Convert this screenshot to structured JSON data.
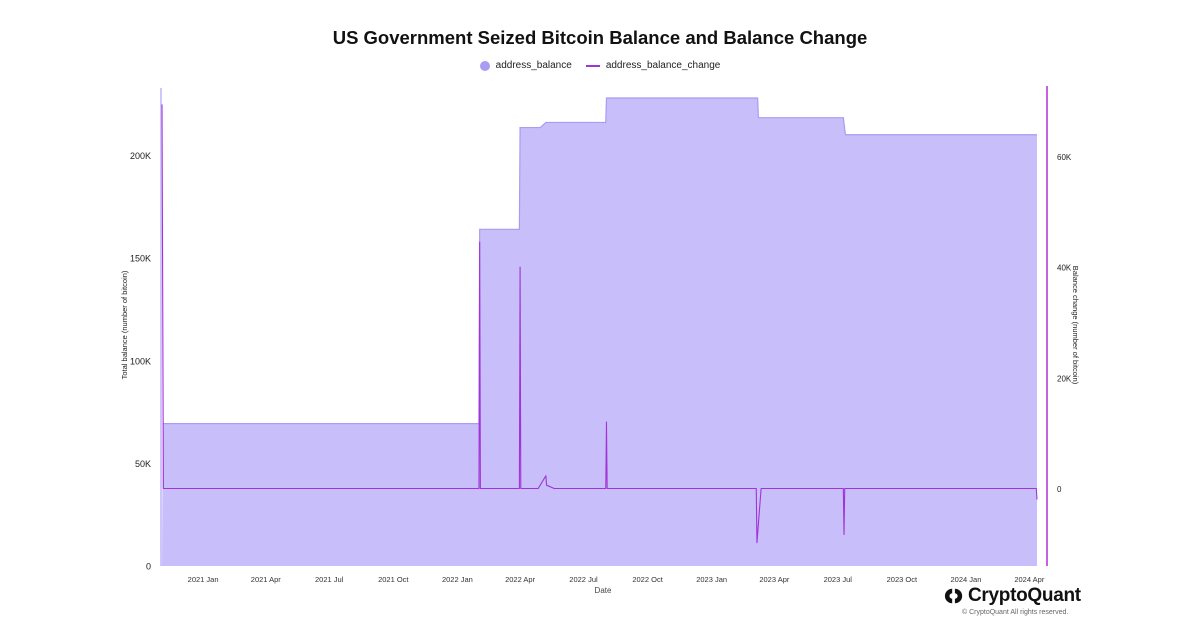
{
  "title": "US Government Seized Bitcoin Balance and Balance Change",
  "legend": {
    "balance_label": "address_balance",
    "change_label": "address_balance_change"
  },
  "colors": {
    "balance_fill": "#c8bffa",
    "balance_edge": "#a99bf0",
    "change_line": "#a233d6",
    "legend_dot": "#a99cf2",
    "axis_right": "#b53ad8",
    "axis_left": "#cfc6fb"
  },
  "watermark": "CryptoQuant",
  "brand": {
    "name": "CryptoQuant",
    "copyright": "© CryptoQuant All rights reserved."
  },
  "chart_data": {
    "type": "area",
    "xlabel": "Date",
    "ylabel_left": "Total balance (number of bitcoin)",
    "ylabel_right": "Balance change (number of bitcoin)",
    "ylim_left": [
      0,
      232000
    ],
    "ylim_right": [
      -14000,
      72000
    ],
    "x_range": [
      "2020-11-03",
      "2024-04-12"
    ],
    "x_ticks": [
      {
        "date": "2021-01-01",
        "label": "2021 Jan"
      },
      {
        "date": "2021-04-01",
        "label": "2021 Apr"
      },
      {
        "date": "2021-07-01",
        "label": "2021 Jul"
      },
      {
        "date": "2021-10-01",
        "label": "2021 Oct"
      },
      {
        "date": "2022-01-01",
        "label": "2022 Jan"
      },
      {
        "date": "2022-04-01",
        "label": "2022 Apr"
      },
      {
        "date": "2022-07-01",
        "label": "2022 Jul"
      },
      {
        "date": "2022-10-01",
        "label": "2022 Oct"
      },
      {
        "date": "2023-01-01",
        "label": "2023 Jan"
      },
      {
        "date": "2023-04-01",
        "label": "2023 Apr"
      },
      {
        "date": "2023-07-01",
        "label": "2023 Jul"
      },
      {
        "date": "2023-10-01",
        "label": "2023 Oct"
      },
      {
        "date": "2024-01-01",
        "label": "2024 Jan"
      },
      {
        "date": "2024-04-01",
        "label": "2024 Apr"
      }
    ],
    "y_ticks_left": [
      {
        "value": 0,
        "label": "0"
      },
      {
        "value": 50000,
        "label": "50K"
      },
      {
        "value": 100000,
        "label": "100K"
      },
      {
        "value": 150000,
        "label": "150K"
      },
      {
        "value": 200000,
        "label": "200K"
      }
    ],
    "y_ticks_right": [
      {
        "value": 0,
        "label": "0"
      },
      {
        "value": 20000,
        "label": "20K"
      },
      {
        "value": 40000,
        "label": "40K"
      },
      {
        "value": 60000,
        "label": "60K"
      }
    ],
    "series": [
      {
        "name": "address_balance",
        "points": [
          {
            "x": "2020-11-03",
            "y": 0
          },
          {
            "x": "2020-11-04",
            "y": 69400
          },
          {
            "x": "2022-02-01",
            "y": 69400
          },
          {
            "x": "2022-02-02",
            "y": 164100
          },
          {
            "x": "2022-03-31",
            "y": 164100
          },
          {
            "x": "2022-04-01",
            "y": 213700
          },
          {
            "x": "2022-04-30",
            "y": 213700
          },
          {
            "x": "2022-05-08",
            "y": 216200
          },
          {
            "x": "2022-08-02",
            "y": 216200
          },
          {
            "x": "2022-08-03",
            "y": 228100
          },
          {
            "x": "2023-03-08",
            "y": 228100
          },
          {
            "x": "2023-03-09",
            "y": 218500
          },
          {
            "x": "2023-07-09",
            "y": 218500
          },
          {
            "x": "2023-07-12",
            "y": 210200
          },
          {
            "x": "2024-04-12",
            "y": 210200
          }
        ]
      },
      {
        "name": "address_balance_change",
        "points": [
          {
            "x": "2020-11-03",
            "y": 69400
          },
          {
            "x": "2020-11-05",
            "y": 0
          },
          {
            "x": "2022-02-01",
            "y": 0
          },
          {
            "x": "2022-02-02",
            "y": 44500
          },
          {
            "x": "2022-02-03",
            "y": 0
          },
          {
            "x": "2022-03-31",
            "y": 0
          },
          {
            "x": "2022-04-01",
            "y": 40000
          },
          {
            "x": "2022-04-02",
            "y": 0
          },
          {
            "x": "2022-04-27",
            "y": 0
          },
          {
            "x": "2022-05-08",
            "y": 2300
          },
          {
            "x": "2022-05-09",
            "y": 600
          },
          {
            "x": "2022-05-20",
            "y": 0
          },
          {
            "x": "2022-08-02",
            "y": 0
          },
          {
            "x": "2022-08-03",
            "y": 12000
          },
          {
            "x": "2022-08-04",
            "y": 0
          },
          {
            "x": "2023-03-06",
            "y": 0
          },
          {
            "x": "2023-03-07",
            "y": -9800
          },
          {
            "x": "2023-03-13",
            "y": 0
          },
          {
            "x": "2023-07-09",
            "y": 0
          },
          {
            "x": "2023-07-10",
            "y": -8300
          },
          {
            "x": "2023-07-11",
            "y": 0
          },
          {
            "x": "2024-04-11",
            "y": 0
          },
          {
            "x": "2024-04-12",
            "y": -2000
          }
        ]
      }
    ]
  }
}
